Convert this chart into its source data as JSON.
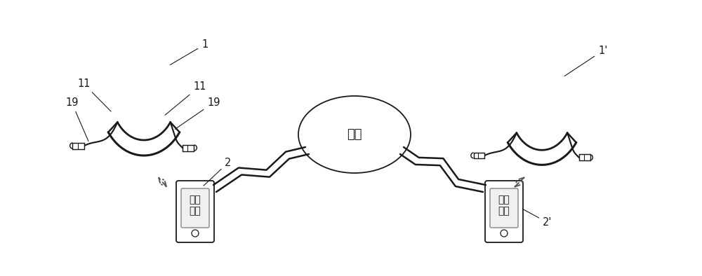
{
  "bg_color": "#ffffff",
  "line_color": "#1a1a1a",
  "dashed_color": "#555555",
  "network_label": "网络",
  "app_label": "应用\n程序",
  "label_1": "1",
  "label_1p": "1'",
  "label_2": "2",
  "label_2p": "2'",
  "label_11": "11",
  "label_19": "19"
}
